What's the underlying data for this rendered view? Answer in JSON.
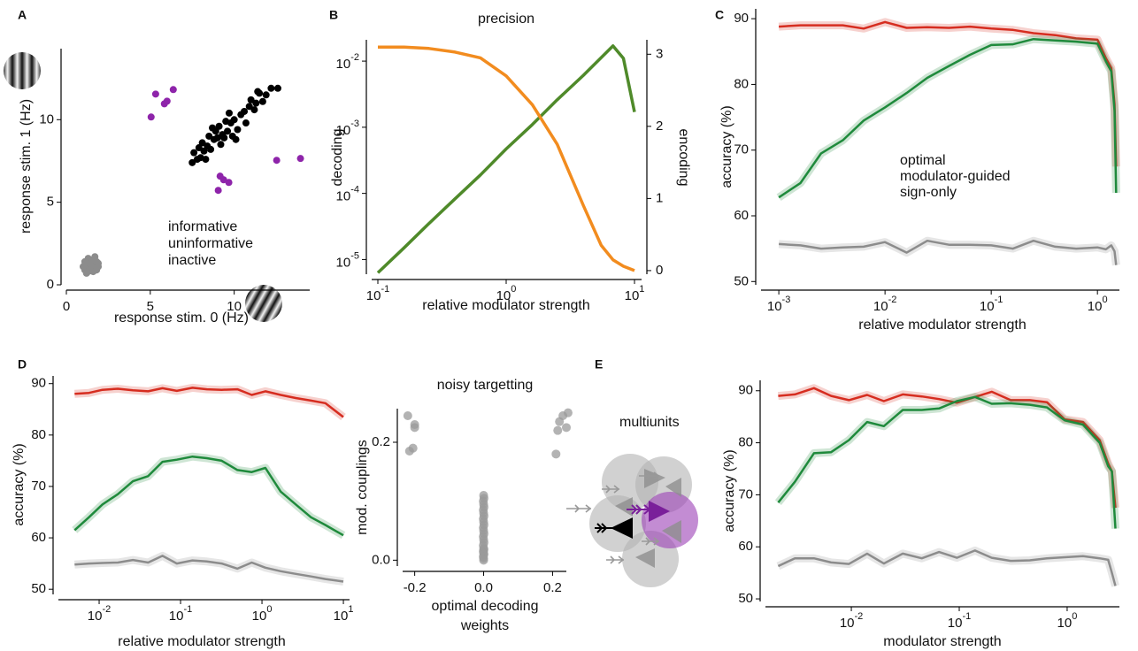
{
  "chart_data": [
    {
      "panel": "A",
      "type": "scatter",
      "xlabel": "response stim. 0 (Hz)",
      "ylabel": "response stim. 1 (Hz)",
      "xlim": [
        0,
        14.5
      ],
      "ylim": [
        0,
        14.3
      ],
      "xticks": [
        0,
        5,
        10
      ],
      "yticks": [
        0,
        5,
        10
      ],
      "series": [
        {
          "name": "informative",
          "color": "#8e24aa",
          "x": [
            5.05,
            5.32,
            5.84,
            6.0,
            6.37,
            9.16,
            9.37,
            9.05,
            9.68,
            12.53,
            13.95
          ],
          "y": [
            10.16,
            11.55,
            10.96,
            11.12,
            11.82,
            6.58,
            6.36,
            5.72,
            6.2,
            7.54,
            7.65
          ]
        },
        {
          "name": "uninformative",
          "color": "#000000",
          "x": [
            7.5,
            7.6,
            7.8,
            7.9,
            8.0,
            8.1,
            8.2,
            8.3,
            8.4,
            8.5,
            8.6,
            8.8,
            8.9,
            9.0,
            9.1,
            9.2,
            9.3,
            9.4,
            9.5,
            9.6,
            9.8,
            9.9,
            10.0,
            10.1,
            10.2,
            10.4,
            10.6,
            10.7,
            10.9,
            11.0,
            11.2,
            11.3,
            11.5,
            11.7,
            11.9,
            12.2,
            12.6,
            11.4,
            8.7,
            9.7
          ],
          "y": [
            7.4,
            8.0,
            7.6,
            8.3,
            7.7,
            8.6,
            8.1,
            7.6,
            8.4,
            9.0,
            8.2,
            8.8,
            9.3,
            8.9,
            9.6,
            8.5,
            9.1,
            8.9,
            9.9,
            9.3,
            9.8,
            9.0,
            10.0,
            8.8,
            9.4,
            10.3,
            10.5,
            9.8,
            10.8,
            11.2,
            10.6,
            11.0,
            11.6,
            11.1,
            11.5,
            11.9,
            11.9,
            11.7,
            9.5,
            10.4
          ]
        },
        {
          "name": "inactive",
          "color": "#8c8c8c",
          "x": [
            1.1,
            1.3,
            1.5,
            1.7,
            1.9,
            1.2,
            1.4,
            1.6,
            1.8,
            1.0,
            1.3,
            1.5,
            1.7,
            1.2,
            1.4,
            1.6,
            1.9,
            1.1,
            1.5,
            1.8
          ],
          "y": [
            0.9,
            0.8,
            0.9,
            1.0,
            1.1,
            1.2,
            1.3,
            1.2,
            1.4,
            1.1,
            1.6,
            1.5,
            1.7,
            0.7,
            1.0,
            0.8,
            1.3,
            1.4,
            1.1,
            0.9
          ]
        }
      ]
    },
    {
      "panel": "B",
      "type": "line",
      "title": "precision",
      "xlabel": "relative modulator strength",
      "xlog": true,
      "ylog": true,
      "xlim": [
        0.0895,
        11.35
      ],
      "ylim": [
        6e-06,
        0.021
      ],
      "y2lim": [
        -0.05,
        3.2
      ],
      "xticks": [
        {
          "value": 0.1,
          "label": "10",
          "exponent": "-1"
        },
        {
          "value": 1,
          "label": "10",
          "exponent": "0"
        },
        {
          "value": 10,
          "label": "10",
          "exponent": "1"
        }
      ],
      "yticks": [
        {
          "value": 1e-05,
          "label": "10",
          "exponent": "-5"
        },
        {
          "value": 0.0001,
          "label": "10",
          "exponent": "-4"
        },
        {
          "value": 0.001,
          "label": "10",
          "exponent": "-3"
        },
        {
          "value": 0.01,
          "label": "10",
          "exponent": "-2"
        }
      ],
      "y2ticks": [
        0,
        1,
        2,
        3
      ],
      "x": [
        0.1,
        0.16,
        0.25,
        0.4,
        0.63,
        1,
        1.6,
        2.5,
        4,
        5.5,
        6.8,
        8.2,
        10
      ],
      "series": [
        {
          "name": "decoding",
          "color": "#4f8a2a",
          "values": [
            6.3e-06,
            1.5e-05,
            3.5e-05,
            8.3e-05,
            0.00019,
            0.00047,
            0.0011,
            0.0026,
            0.0061,
            0.0113,
            0.017,
            0.011,
            0.0017
          ]
        },
        {
          "name": "encoding",
          "color": "#f28c1f",
          "axis": "y2",
          "values": [
            3.1,
            3.1,
            3.08,
            3.03,
            2.95,
            2.7,
            2.3,
            1.75,
            0.9,
            0.35,
            0.15,
            0.06,
            0.0
          ]
        }
      ]
    },
    {
      "panel": "C",
      "type": "line",
      "band": true,
      "xlabel": "relative modulator strength",
      "ylabel": "accuracy (%)",
      "xlog": true,
      "xlim": [
        0.00068,
        1.61
      ],
      "ylim": [
        49.5,
        91.5
      ],
      "xticks": [
        {
          "value": 0.001,
          "label": "10",
          "exponent": "-3"
        },
        {
          "value": 0.01,
          "label": "10",
          "exponent": "-2"
        },
        {
          "value": 0.1,
          "label": "10",
          "exponent": "-1"
        },
        {
          "value": 1,
          "label": "10",
          "exponent": "0"
        }
      ],
      "yticks": [
        50,
        60,
        70,
        80,
        90
      ],
      "x": [
        0.001,
        0.0016,
        0.0025,
        0.004,
        0.0063,
        0.01,
        0.016,
        0.025,
        0.04,
        0.063,
        0.1,
        0.16,
        0.25,
        0.4,
        0.63,
        1,
        1.2,
        1.35,
        1.45,
        1.5
      ],
      "series": [
        {
          "name": "optimal",
          "color": "#d62d20",
          "values": [
            88.8,
            89,
            89,
            89,
            88.5,
            89.5,
            88.6,
            88.7,
            88.6,
            88.8,
            88.5,
            88.3,
            87.8,
            87.5,
            87,
            86.8,
            84,
            82.5,
            77,
            67.5
          ]
        },
        {
          "name": "modulator-guided",
          "color": "#1f8a3c",
          "values": [
            62.8,
            65,
            69.5,
            71.5,
            74.5,
            76.5,
            78.7,
            81,
            82.8,
            84.5,
            86,
            86.1,
            86.9,
            86.7,
            86.5,
            86.2,
            83.5,
            82,
            76,
            63.5
          ]
        },
        {
          "name": "sign-only",
          "color": "#8c8c8c",
          "values": [
            55.7,
            55.5,
            55,
            55.2,
            55.3,
            56,
            54.4,
            56.2,
            55.6,
            55.6,
            55.5,
            55,
            56.2,
            55.3,
            55,
            55.2,
            54.9,
            55.5,
            54.6,
            52.5
          ]
        }
      ]
    },
    {
      "panel": "D",
      "type": "line",
      "band": true,
      "xlabel": "relative modulator strength",
      "ylabel": "accuracy (%)",
      "xlog": true,
      "xlim": [
        0.00316,
        11.9
      ],
      "ylim": [
        49,
        91.5
      ],
      "xticks": [
        {
          "value": 0.01,
          "label": "10",
          "exponent": "-2"
        },
        {
          "value": 0.1,
          "label": "10",
          "exponent": "-1"
        },
        {
          "value": 1,
          "label": "10",
          "exponent": "0"
        },
        {
          "value": 10,
          "label": "10",
          "exponent": "1"
        }
      ],
      "yticks": [
        50,
        60,
        70,
        80,
        90
      ],
      "x": [
        0.005,
        0.0075,
        0.011,
        0.017,
        0.026,
        0.04,
        0.06,
        0.09,
        0.14,
        0.21,
        0.32,
        0.5,
        0.75,
        1.1,
        1.7,
        2.6,
        4,
        6,
        10
      ],
      "series": [
        {
          "color": "#d62d20",
          "values": [
            88,
            88.2,
            88.8,
            89,
            88.7,
            88.5,
            89.1,
            88.6,
            89.2,
            88.9,
            88.8,
            88.9,
            87.8,
            88.5,
            87.8,
            87.2,
            86.7,
            86.2,
            83.5
          ]
        },
        {
          "color": "#1f8a3c",
          "values": [
            61.5,
            64,
            66.5,
            68.5,
            71,
            72,
            74.8,
            75.2,
            75.8,
            75.5,
            75,
            73.2,
            72.8,
            73.6,
            69,
            66.5,
            64,
            62.5,
            60.5
          ]
        },
        {
          "color": "#8c8c8c",
          "values": [
            54.8,
            55,
            55.1,
            55.2,
            55.7,
            55.2,
            56.5,
            55,
            55.6,
            55.4,
            55,
            54,
            55.2,
            54.2,
            53.5,
            53,
            52.5,
            52,
            51.5
          ]
        }
      ]
    },
    {
      "type": "scatter",
      "title": "noisy targetting",
      "xlabel": [
        "optimal decoding",
        "weights"
      ],
      "ylabel": "mod. couplings",
      "xlim": [
        -0.235,
        0.24
      ],
      "ylim": [
        -0.01,
        0.257
      ],
      "xticks": [
        {
          "value": -0.2,
          "label": "-0.2"
        },
        {
          "value": 0,
          "label": "0.0"
        },
        {
          "value": 0.2,
          "label": "0.2"
        }
      ],
      "yticks": [
        {
          "value": 0,
          "label": "0.0"
        },
        {
          "value": 0.2,
          "label": "0.2"
        }
      ],
      "series": [
        {
          "color": "#9a9a9a",
          "x": [
            -0.22,
            -0.2,
            -0.205,
            -0.215,
            -0.2,
            0.23,
            0.22,
            0.24,
            0.21,
            0.215,
            0.245,
            0.0,
            0.001,
            -0.001,
            0.0,
            0.001,
            -0.001,
            0.0,
            0.001,
            -0.001,
            0.0,
            0.001,
            -0.001,
            0.0,
            0.001,
            -0.001,
            0.0,
            0.001,
            -0.001,
            0.0,
            0.001,
            -0.001,
            0.0,
            0.001,
            -0.001,
            0.0,
            0.0
          ],
          "y": [
            0.245,
            0.225,
            0.19,
            0.185,
            0.23,
            0.245,
            0.235,
            0.225,
            0.18,
            0.22,
            0.25,
            0.11,
            0.105,
            0.1,
            0.095,
            0.09,
            0.085,
            0.08,
            0.075,
            0.07,
            0.065,
            0.06,
            0.055,
            0.05,
            0.045,
            0.04,
            0.035,
            0.03,
            0.025,
            0.02,
            0.018,
            0.015,
            0.012,
            0.01,
            0.006,
            0.003,
            0.0
          ]
        }
      ]
    },
    {
      "type": "line",
      "band": true,
      "xlabel": "modulator strength",
      "ylabel": "accuracy (%)",
      "xlog": true,
      "xlim": [
        0.0016,
        3.05
      ],
      "ylim": [
        49.5,
        92
      ],
      "xticks": [
        {
          "value": 0.01,
          "label": "10",
          "exponent": "-2"
        },
        {
          "value": 0.1,
          "label": "10",
          "exponent": "-1"
        },
        {
          "value": 1,
          "label": "10",
          "exponent": "0"
        }
      ],
      "yticks": [
        50,
        60,
        70,
        80,
        90
      ],
      "x": [
        0.0021,
        0.003,
        0.0045,
        0.0065,
        0.0095,
        0.014,
        0.02,
        0.03,
        0.045,
        0.065,
        0.095,
        0.14,
        0.2,
        0.3,
        0.45,
        0.65,
        0.95,
        1.4,
        2.0,
        2.4,
        2.6,
        2.8
      ],
      "series": [
        {
          "color": "#d62d20",
          "values": [
            89,
            89.3,
            90.5,
            89,
            88.2,
            89.2,
            88,
            89.3,
            88.9,
            88.4,
            87.7,
            88.8,
            89.8,
            88.2,
            88.2,
            87.8,
            84.5,
            84,
            80.5,
            76,
            74.5,
            67.5
          ]
        },
        {
          "color": "#1f8a3c",
          "values": [
            68.5,
            72.5,
            78,
            78.2,
            80.5,
            84,
            83.2,
            86.3,
            86.3,
            86.6,
            88,
            88.8,
            87.5,
            87.6,
            87.3,
            86.8,
            84.3,
            83.5,
            80,
            75.5,
            74.5,
            63.5
          ]
        },
        {
          "color": "#8c8c8c",
          "values": [
            56.3,
            57.8,
            57.8,
            57,
            56.7,
            58.7,
            56.8,
            58.7,
            57.8,
            59,
            57.9,
            59.3,
            57.9,
            57.3,
            57.4,
            57.8,
            58,
            58.2,
            57.8,
            57.5,
            55,
            52.5
          ]
        }
      ]
    }
  ],
  "diagram": {
    "panel": "E",
    "title": "multiunits"
  }
}
